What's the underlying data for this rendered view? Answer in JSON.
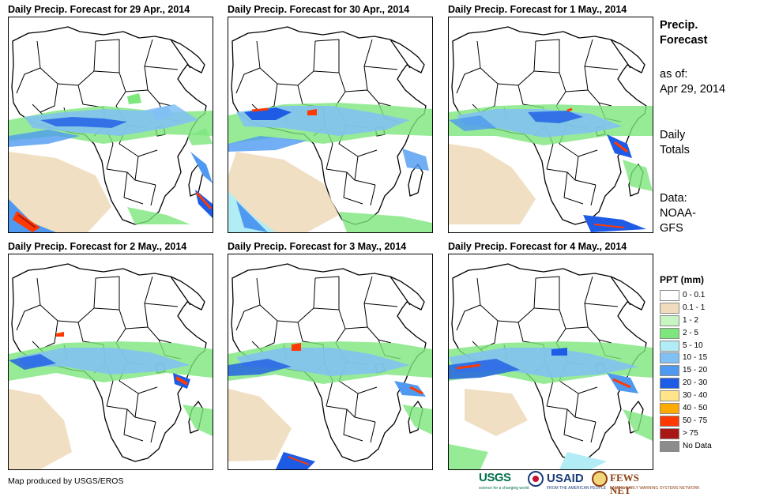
{
  "panels": [
    {
      "id": "apr29",
      "title": "Daily Precip. Forecast for 29 Apr., 2014"
    },
    {
      "id": "apr30",
      "title": "Daily Precip. Forecast for 30 Apr., 2014"
    },
    {
      "id": "may1",
      "title": "Daily Precip. Forecast for 1 May., 2014"
    },
    {
      "id": "may2",
      "title": "Daily Precip. Forecast for 2 May., 2014"
    },
    {
      "id": "may3",
      "title": "Daily Precip. Forecast for 3 May., 2014"
    },
    {
      "id": "may4",
      "title": "Daily Precip. Forecast for 4 May., 2014"
    }
  ],
  "sidebar": {
    "title_line1": "Precip.",
    "title_line2": "Forecast",
    "asof_line1": "as of:",
    "asof_line2": "Apr 29, 2014",
    "totals_line1": "Daily",
    "totals_line2": "Totals",
    "data_line1": "Data:",
    "data_line2": "NOAA-",
    "data_line3": "GFS"
  },
  "legend": {
    "title": "PPT (mm)",
    "items": [
      {
        "label": "0 - 0.1",
        "color": "#ffffff"
      },
      {
        "label": "0.1 - 1",
        "color": "#f0dcbc"
      },
      {
        "label": "1 - 2",
        "color": "#c6f5c3"
      },
      {
        "label": "2 - 5",
        "color": "#7de67d"
      },
      {
        "label": "5 - 10",
        "color": "#b2ecf5"
      },
      {
        "label": "10 - 15",
        "color": "#80c0f5"
      },
      {
        "label": "15 - 20",
        "color": "#4f9af0"
      },
      {
        "label": "20 - 30",
        "color": "#1f5ce6"
      },
      {
        "label": "30 - 40",
        "color": "#ffe48a"
      },
      {
        "label": "40 - 50",
        "color": "#ffaa00"
      },
      {
        "label": "50 - 75",
        "color": "#ff3a00"
      },
      {
        "label": "> 75",
        "color": "#a81616"
      },
      {
        "label": "No Data",
        "color": "#8c8c8c"
      }
    ]
  },
  "footer": {
    "credit": "Map produced by USGS/EROS"
  },
  "logos": {
    "usgs": "USGS",
    "usgs_tagline": "science for a changing world",
    "usaid": "USAID",
    "usaid_tagline": "FROM THE AMERICAN PEOPLE",
    "fews": "FEWS NET",
    "fews_tagline": "FAMINE EARLY WARNING SYSTEMS NETWORK"
  }
}
